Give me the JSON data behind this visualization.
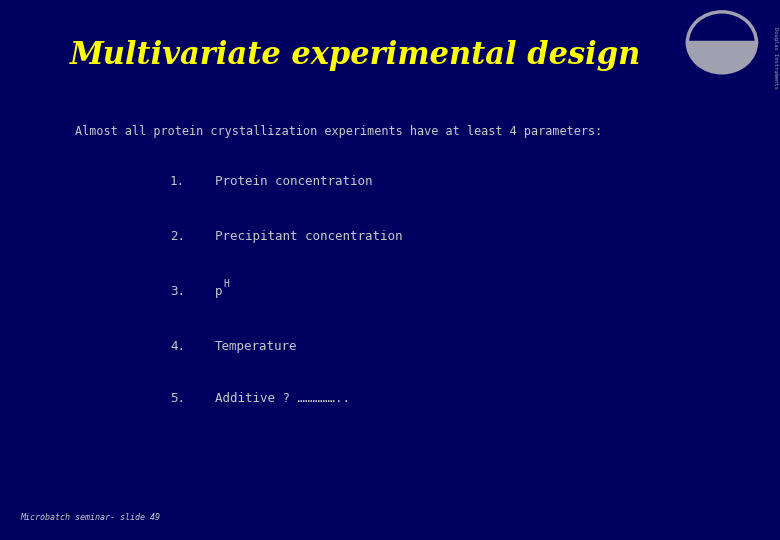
{
  "background_color": "#000060",
  "title": "Multivariate experimental design",
  "title_color": "#FFFF00",
  "title_fontsize": 22,
  "subtitle": "Almost all protein crystallization experiments have at least 4 parameters:",
  "subtitle_color": "#C8C8C8",
  "subtitle_fontsize": 8.5,
  "items": [
    {
      "num": "1.",
      "text": "Protein concentration"
    },
    {
      "num": "2.",
      "text": "Precipitant concentration"
    },
    {
      "num": "3.",
      "text": "pH",
      "has_superscript": true,
      "base": "p",
      "super": "H"
    },
    {
      "num": "4.",
      "text": "Temperature"
    },
    {
      "num": "5.",
      "text": "Additive ? …………….."
    }
  ],
  "item_color": "#C8C8C8",
  "item_fontsize": 9,
  "footer": "Microbatch seminar- slide 49",
  "footer_color": "#C8C8C8",
  "footer_fontsize": 6,
  "logo_color": "#A0A0B0"
}
